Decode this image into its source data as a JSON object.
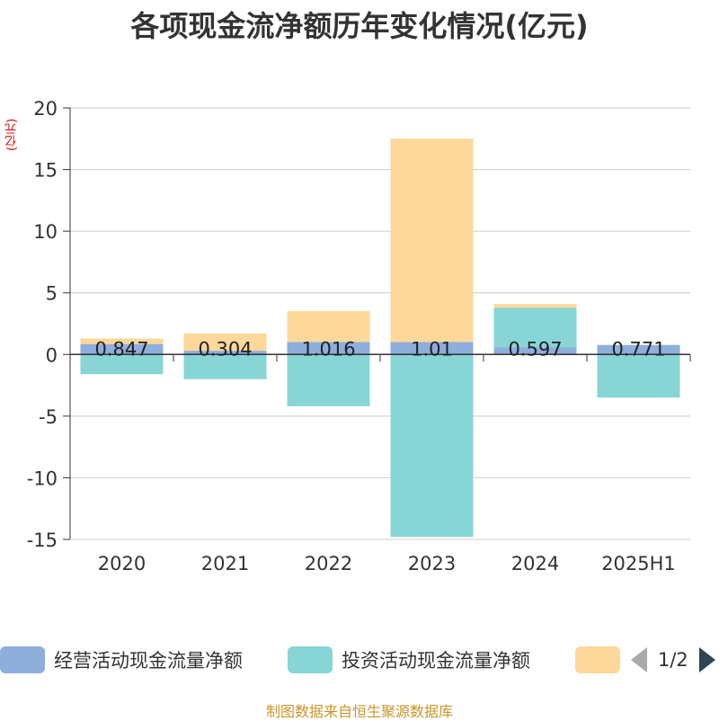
{
  "title": "各项现金流净额历年变化情况(亿元)",
  "unit_label": "(亿元)",
  "legend": {
    "items": [
      {
        "label": "经营活动现金流量净额",
        "color": "#8eaedb"
      },
      {
        "label": "投资活动现金流量净额",
        "color": "#88d5d6"
      },
      {
        "label": "",
        "color": "#fdd89a"
      }
    ],
    "page": "1/2"
  },
  "source": "制图数据来自恒生聚源数据库",
  "chart_data": {
    "type": "bar",
    "stacked": true,
    "categories": [
      "2020",
      "2021",
      "2022",
      "2023",
      "2024",
      "2025H1"
    ],
    "ylim": [
      -15,
      20
    ],
    "yticks": [
      -15,
      -10,
      -5,
      0,
      5,
      10,
      15,
      20
    ],
    "grid": true,
    "series": [
      {
        "name": "经营活动现金流量净额",
        "color": "#8eaedb",
        "values": [
          0.847,
          0.304,
          1.016,
          1.01,
          0.597,
          0.771
        ],
        "labels": [
          "0.847",
          "0.304",
          "1.016",
          "1.01",
          "0.597",
          "0.771"
        ]
      },
      {
        "name": "投资活动现金流量净额",
        "color": "#88d5d6",
        "values": [
          -1.6,
          -2.0,
          -4.2,
          -14.8,
          3.2,
          -3.5
        ]
      },
      {
        "name": "",
        "color": "#fdd89a",
        "values": [
          0.45,
          1.4,
          2.5,
          16.5,
          0.3,
          0.0
        ]
      }
    ]
  }
}
